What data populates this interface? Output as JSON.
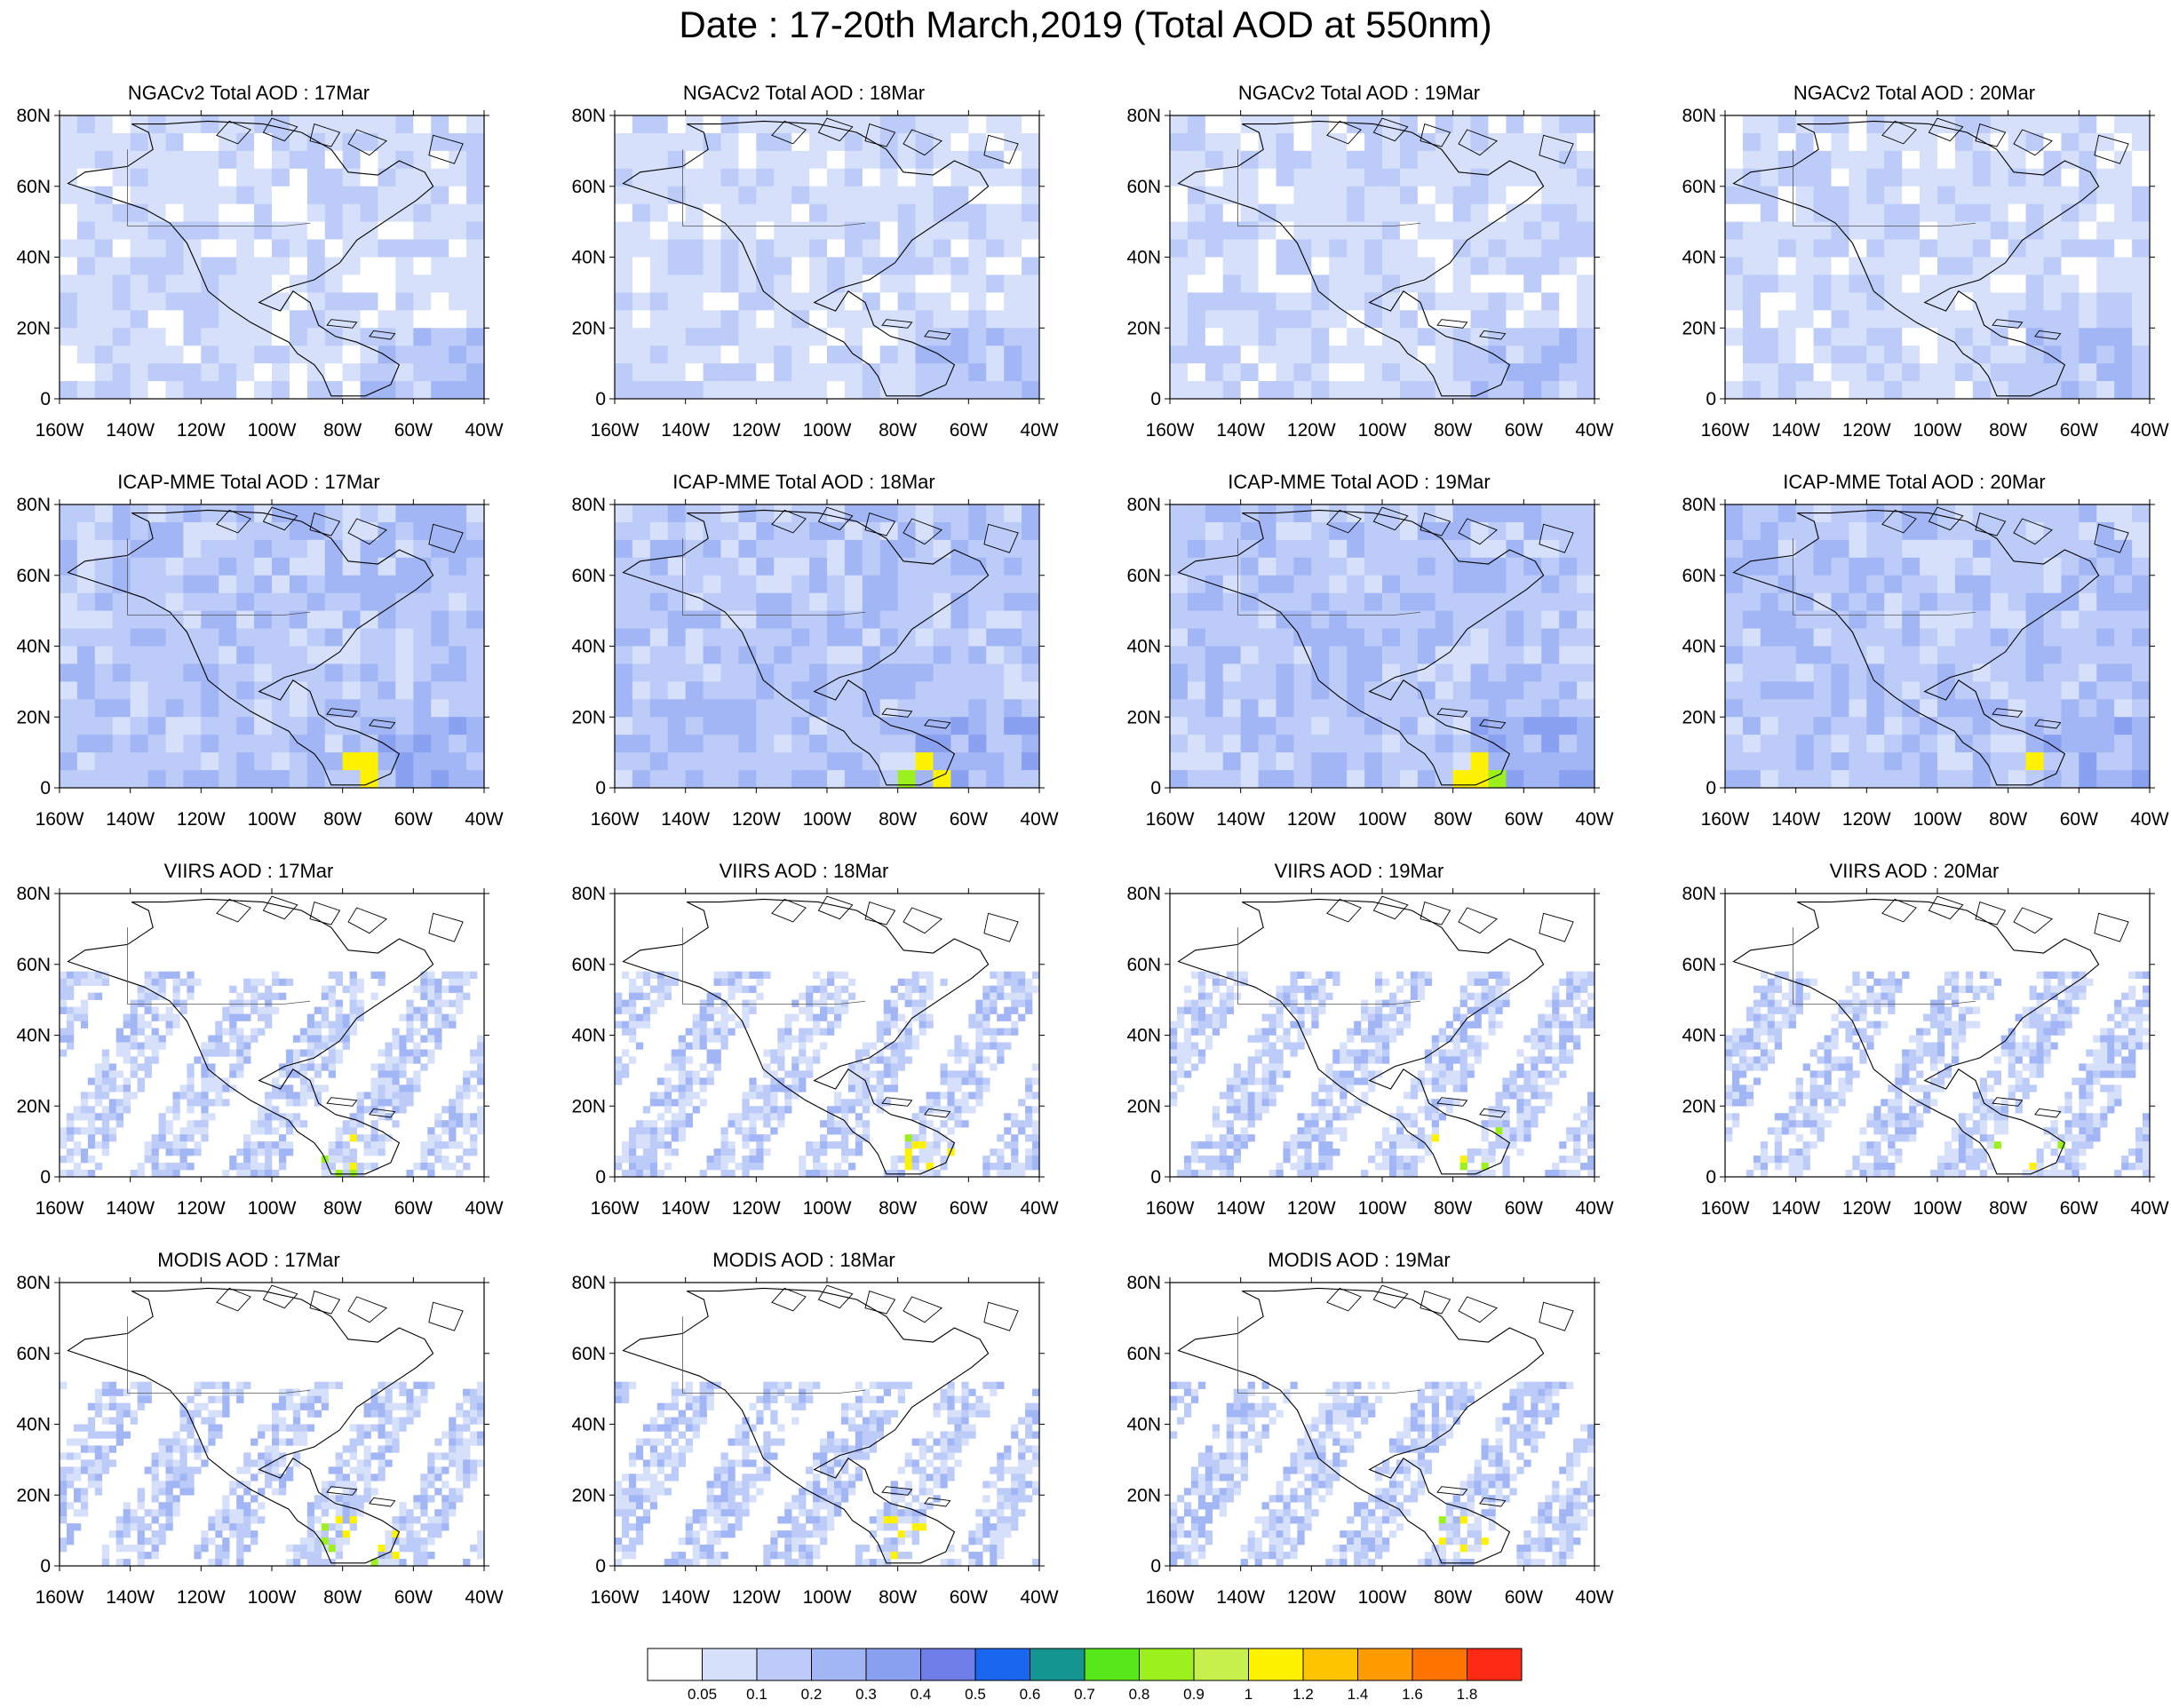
{
  "title": "Date : 17-20th March,2019 (Total AOD at 550nm)",
  "axes": {
    "y_ticks": [
      "80N",
      "60N",
      "40N",
      "20N",
      "0"
    ],
    "x_ticks": [
      "160W",
      "140W",
      "120W",
      "100W",
      "80W",
      "60W",
      "40W"
    ]
  },
  "panels": [
    {
      "id": "ngac-17",
      "title": "NGACv2 Total AOD : 17Mar",
      "product": "ngac",
      "level": 1
    },
    {
      "id": "ngac-18",
      "title": "NGACv2 Total AOD : 18Mar",
      "product": "ngac",
      "level": 1
    },
    {
      "id": "ngac-19",
      "title": "NGACv2 Total AOD : 19Mar",
      "product": "ngac",
      "level": 1
    },
    {
      "id": "ngac-20",
      "title": "NGACv2 Total AOD : 20Mar",
      "product": "ngac",
      "level": 1
    },
    {
      "id": "icap-17",
      "title": "ICAP-MME Total AOD : 17Mar",
      "product": "icap",
      "level": 2
    },
    {
      "id": "icap-18",
      "title": "ICAP-MME Total AOD : 18Mar",
      "product": "icap",
      "level": 2
    },
    {
      "id": "icap-19",
      "title": "ICAP-MME Total AOD : 19Mar",
      "product": "icap",
      "level": 2
    },
    {
      "id": "icap-20",
      "title": "ICAP-MME Total AOD : 20Mar",
      "product": "icap",
      "level": 2
    },
    {
      "id": "viirs-17",
      "title": "VIIRS AOD : 17Mar",
      "product": "viirs",
      "level": 1
    },
    {
      "id": "viirs-18",
      "title": "VIIRS AOD : 18Mar",
      "product": "viirs",
      "level": 1
    },
    {
      "id": "viirs-19",
      "title": "VIIRS AOD : 19Mar",
      "product": "viirs",
      "level": 1
    },
    {
      "id": "viirs-20",
      "title": "VIIRS AOD : 20Mar",
      "product": "viirs",
      "level": 1
    },
    {
      "id": "modis-17",
      "title": "MODIS AOD : 17Mar",
      "product": "modis",
      "level": 1
    },
    {
      "id": "modis-18",
      "title": "MODIS AOD : 18Mar",
      "product": "modis",
      "level": 1
    },
    {
      "id": "modis-19",
      "title": "MODIS AOD : 19Mar",
      "product": "modis",
      "level": 1
    }
  ],
  "colorbar": {
    "labels": [
      "0.05",
      "0.1",
      "0.2",
      "0.3",
      "0.4",
      "0.5",
      "0.6",
      "0.7",
      "0.8",
      "0.9",
      "1",
      "1.2",
      "1.4",
      "1.6",
      "1.8"
    ],
    "colors": [
      "#ffffff",
      "#d6e0fb",
      "#bccbf8",
      "#a2b6f5",
      "#8aa0f0",
      "#6f7de8",
      "#1a66ee",
      "#14958f",
      "#57e81c",
      "#9cf01e",
      "#c8f04c",
      "#fff200",
      "#ffc400",
      "#ff9a00",
      "#ff7300",
      "#ff2a14"
    ]
  }
}
